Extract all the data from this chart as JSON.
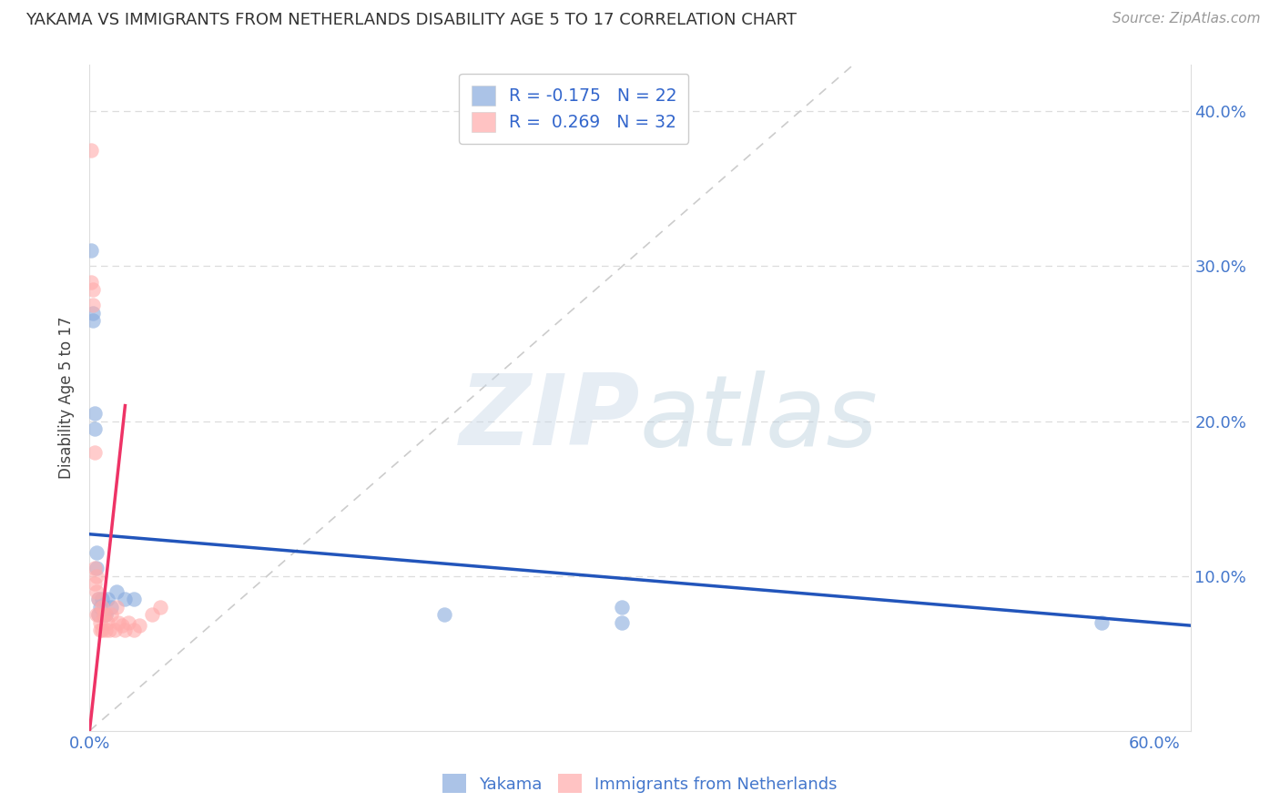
{
  "title": "YAKAMA VS IMMIGRANTS FROM NETHERLANDS DISABILITY AGE 5 TO 17 CORRELATION CHART",
  "source": "Source: ZipAtlas.com",
  "ylabel": "Disability Age 5 to 17",
  "legend_1": "R = -0.175   N = 22",
  "legend_2": "R =  0.269   N = 32",
  "legend_label_1": "Yakama",
  "legend_label_2": "Immigrants from Netherlands",
  "color_blue": "#88AADD",
  "color_pink": "#FFAAAA",
  "color_blue_line": "#2255BB",
  "color_pink_line": "#EE3366",
  "color_diag": "#CCCCCC",
  "yakama_x": [
    0.001,
    0.002,
    0.002,
    0.003,
    0.003,
    0.004,
    0.004,
    0.005,
    0.005,
    0.006,
    0.007,
    0.008,
    0.009,
    0.01,
    0.012,
    0.015,
    0.02,
    0.025,
    0.3,
    0.57,
    0.2,
    0.3
  ],
  "yakama_y": [
    0.31,
    0.27,
    0.265,
    0.205,
    0.195,
    0.115,
    0.105,
    0.085,
    0.075,
    0.08,
    0.085,
    0.075,
    0.075,
    0.085,
    0.08,
    0.09,
    0.085,
    0.085,
    0.08,
    0.07,
    0.075,
    0.07
  ],
  "netherlands_x": [
    0.001,
    0.001,
    0.002,
    0.002,
    0.003,
    0.003,
    0.003,
    0.004,
    0.004,
    0.004,
    0.005,
    0.005,
    0.006,
    0.006,
    0.007,
    0.007,
    0.008,
    0.009,
    0.009,
    0.01,
    0.011,
    0.012,
    0.014,
    0.015,
    0.016,
    0.018,
    0.02,
    0.022,
    0.025,
    0.028,
    0.035,
    0.04
  ],
  "netherlands_y": [
    0.375,
    0.29,
    0.285,
    0.275,
    0.18,
    0.105,
    0.095,
    0.1,
    0.09,
    0.075,
    0.085,
    0.075,
    0.065,
    0.07,
    0.08,
    0.065,
    0.075,
    0.075,
    0.065,
    0.07,
    0.065,
    0.075,
    0.065,
    0.08,
    0.07,
    0.068,
    0.065,
    0.07,
    0.065,
    0.068,
    0.075,
    0.08
  ],
  "xlim": [
    0.0,
    0.62
  ],
  "ylim": [
    0.0,
    0.43
  ],
  "ytick_vals": [
    0.1,
    0.2,
    0.3,
    0.4
  ],
  "ytick_labels_right": [
    "10.0%",
    "20.0%",
    "30.0%",
    "40.0%"
  ],
  "xtick_vals": [
    0.0,
    0.1,
    0.2,
    0.3,
    0.4,
    0.5,
    0.6
  ],
  "background_color": "#FFFFFF",
  "blue_line_x0": 0.0,
  "blue_line_x1": 0.62,
  "blue_line_y0": 0.127,
  "blue_line_y1": 0.068,
  "pink_line_x0": 0.0,
  "pink_line_x1": 0.02,
  "pink_line_y0": 0.0,
  "pink_line_y1": 0.21
}
